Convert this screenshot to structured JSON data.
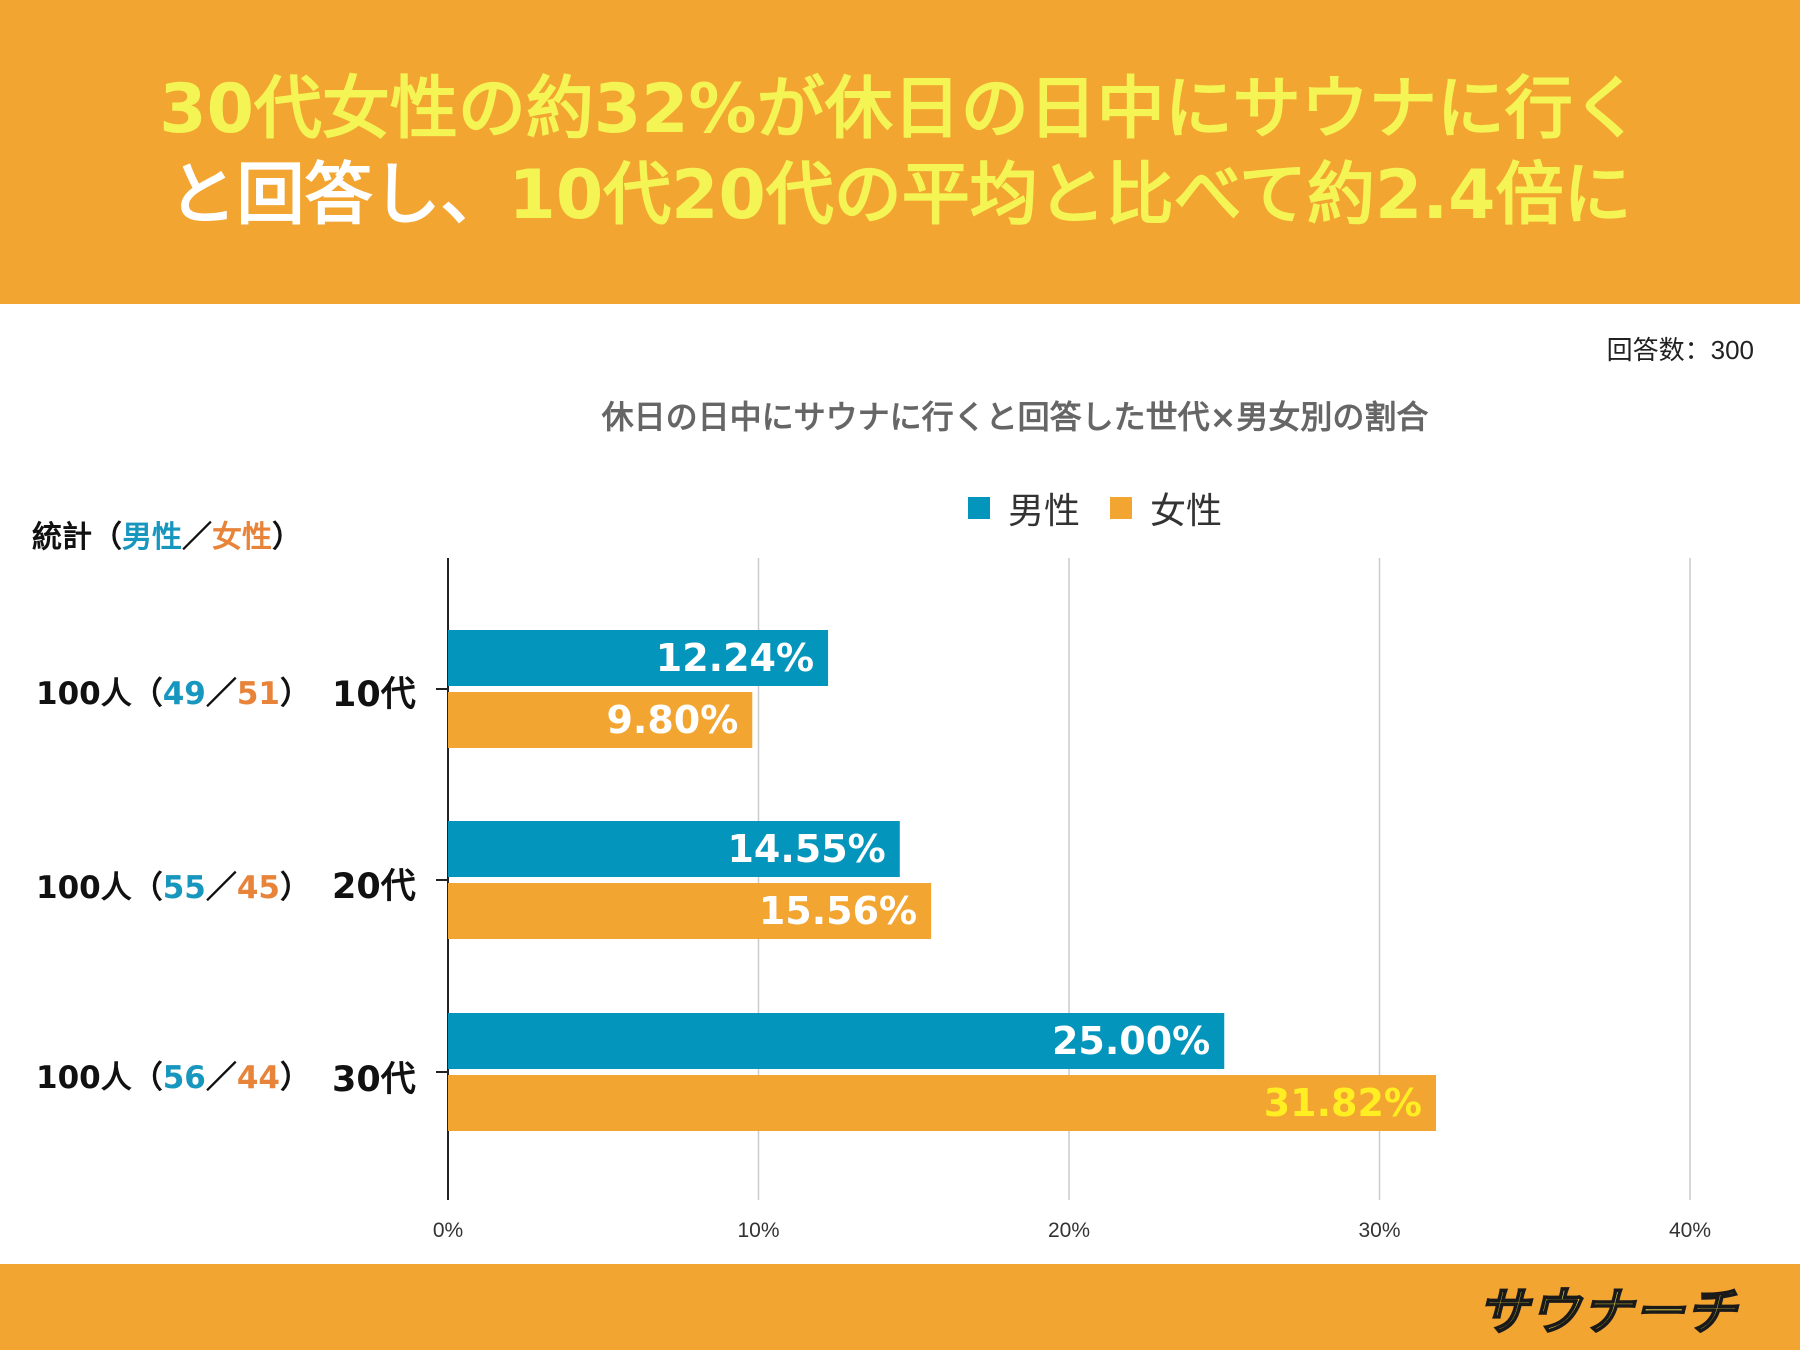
{
  "header": {
    "line1": [
      {
        "text": "30代女性の約32%が休日の日中にサウナに行く",
        "style": "yellow"
      }
    ],
    "line2": [
      {
        "text": "と回答し、",
        "style": "white"
      },
      {
        "text": "10代20代の平均と比べて約2.4倍に",
        "style": "yellow"
      }
    ]
  },
  "respondents": "回答数：300",
  "colors": {
    "male": "#0395BC",
    "female": "#F2A531",
    "header_bg": "#F2A531",
    "label_yellow": "#FFEE22"
  },
  "stats": {
    "header_prefix": "統計（",
    "header_male": "男性",
    "header_slash": "／",
    "header_female": "女性",
    "header_suffix": "）",
    "rows": [
      {
        "total": "100人（",
        "male": "49",
        "slash": "／",
        "female": "51",
        "close": "）"
      },
      {
        "total": "100人（",
        "male": "55",
        "slash": "／",
        "female": "45",
        "close": "）"
      },
      {
        "total": "100人（",
        "male": "56",
        "slash": "／",
        "female": "44",
        "close": "）"
      }
    ]
  },
  "chart_data": {
    "type": "bar",
    "orientation": "horizontal",
    "title": "休日の日中にサウナに行くと回答した世代×男女別の割合",
    "categories": [
      "10代",
      "20代",
      "30代"
    ],
    "series": [
      {
        "name": "男性",
        "values": [
          12.24,
          14.55,
          25.0
        ],
        "labels": [
          "12.24%",
          "14.55%",
          "25.00%"
        ]
      },
      {
        "name": "女性",
        "values": [
          9.8,
          15.56,
          31.82
        ],
        "labels": [
          "9.80%",
          "15.56%",
          "31.82%"
        ]
      }
    ],
    "xlim": [
      0,
      40
    ],
    "xticks": [
      "0%",
      "10%",
      "20%",
      "30%",
      "40%"
    ],
    "grid": true,
    "legend": "top-center"
  },
  "footer": {
    "logo": "サウナーチ"
  }
}
